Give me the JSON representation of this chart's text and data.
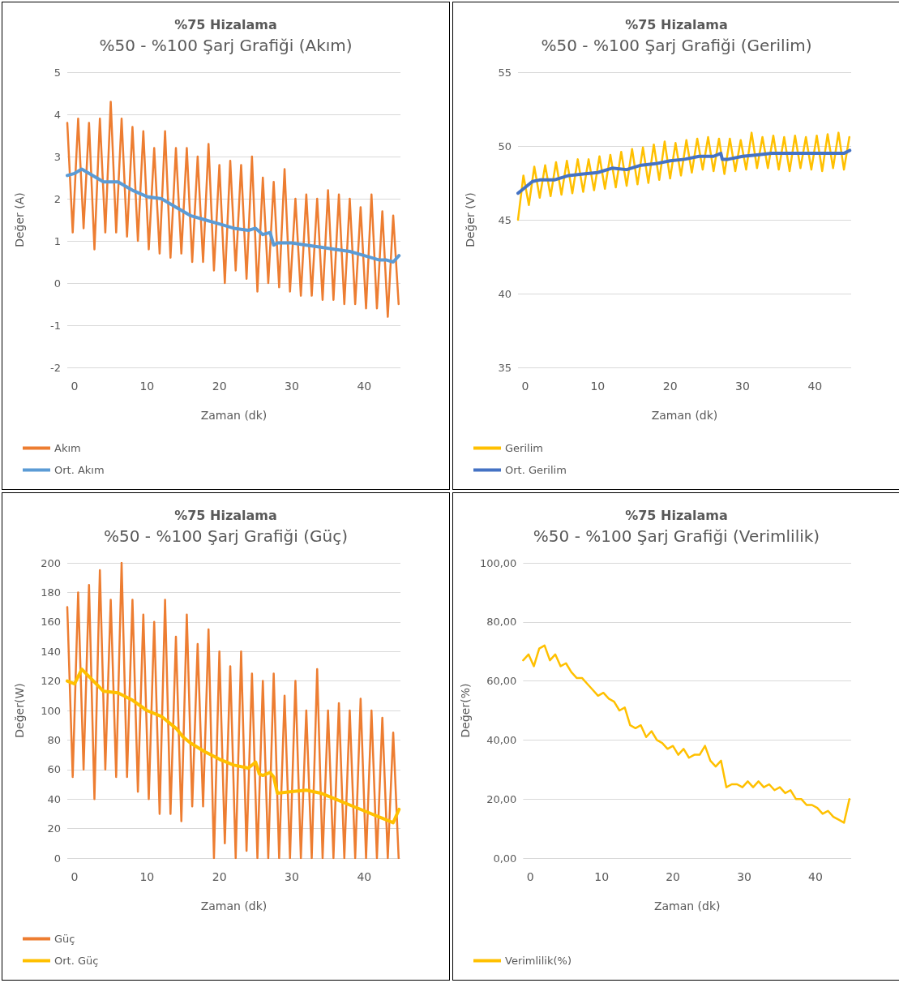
{
  "chart_data": [
    {
      "type": "line",
      "title": "%75 Hizalama",
      "subtitle": "%50 - %100 Şarj Grafiği (Akım)",
      "xlabel": "Zaman (dk)",
      "ylabel": "Değer (A)",
      "xlim": [
        -1,
        45
      ],
      "xticks": [
        0,
        10,
        20,
        30,
        40
      ],
      "ylim": [
        -2,
        5
      ],
      "yticks": [
        -2,
        -1,
        0,
        1,
        2,
        3,
        4,
        5
      ],
      "grid": "y",
      "legend": "bottom left",
      "marker": "none",
      "x": [
        -1,
        -0.25,
        0.5,
        1.25,
        2,
        2.75,
        3.5,
        4.25,
        5,
        5.75,
        6.5,
        7.25,
        8,
        8.75,
        9.5,
        10.25,
        11,
        11.75,
        12.5,
        13.25,
        14,
        14.75,
        15.5,
        16.25,
        17,
        17.75,
        18.5,
        19.25,
        20,
        20.75,
        21.5,
        22.25,
        23,
        23.75,
        24.5,
        25.25,
        26,
        26.75,
        27.5,
        28.25,
        29,
        29.75,
        30.5,
        31.25,
        32,
        32.75,
        33.5,
        34.25,
        35,
        35.75,
        36.5,
        37.25,
        38,
        38.75,
        39.5,
        40.25,
        41,
        41.75,
        42.5,
        43.25,
        44,
        44.75
      ],
      "series": [
        {
          "name": "Akım",
          "color": "#ed7d31",
          "values": [
            3.8,
            1.2,
            3.9,
            1.3,
            3.8,
            0.8,
            3.9,
            1.2,
            4.3,
            1.2,
            3.9,
            1.1,
            3.7,
            1.0,
            3.6,
            0.8,
            3.2,
            0.7,
            3.6,
            0.6,
            3.2,
            0.7,
            3.2,
            0.5,
            3.0,
            0.5,
            3.3,
            0.3,
            2.8,
            0.0,
            2.9,
            0.3,
            2.8,
            0.1,
            3.0,
            -0.2,
            2.5,
            0.0,
            2.4,
            -0.1,
            2.7,
            -0.2,
            2.0,
            -0.3,
            2.1,
            -0.3,
            2.0,
            -0.4,
            2.2,
            -0.4,
            2.1,
            -0.5,
            2.0,
            -0.5,
            1.8,
            -0.6,
            2.1,
            -0.6,
            1.7,
            -0.8,
            1.6,
            -0.5
          ]
        },
        {
          "name": "Ort. Akım",
          "color": "#5b9bd5",
          "x": [
            -1,
            0,
            1,
            2,
            4,
            6,
            8,
            10,
            12,
            14,
            16,
            18,
            20,
            22,
            24,
            25,
            26,
            27,
            27.5,
            28,
            30,
            32,
            34,
            36,
            38,
            40,
            42,
            43,
            44,
            44.8
          ],
          "values": [
            2.55,
            2.6,
            2.7,
            2.6,
            2.4,
            2.4,
            2.2,
            2.05,
            2.0,
            1.8,
            1.6,
            1.5,
            1.4,
            1.3,
            1.25,
            1.3,
            1.15,
            1.2,
            0.9,
            0.95,
            0.95,
            0.9,
            0.85,
            0.8,
            0.75,
            0.65,
            0.55,
            0.55,
            0.5,
            0.65
          ]
        }
      ]
    },
    {
      "type": "line",
      "title": "%75 Hizalama",
      "subtitle": "%50 - %100 Şarj Grafiği (Gerilim)",
      "xlabel": "Zaman (dk)",
      "ylabel": "Değer (V)",
      "xlim": [
        -1,
        45
      ],
      "xticks": [
        0,
        10,
        20,
        30,
        40
      ],
      "ylim": [
        35,
        55
      ],
      "yticks": [
        35,
        40,
        45,
        50,
        55
      ],
      "grid": "y",
      "legend": "bottom left",
      "marker": "none",
      "x": [
        -1,
        -0.25,
        0.5,
        1.25,
        2,
        2.75,
        3.5,
        4.25,
        5,
        5.75,
        6.5,
        7.25,
        8,
        8.75,
        9.5,
        10.25,
        11,
        11.75,
        12.5,
        13.25,
        14,
        14.75,
        15.5,
        16.25,
        17,
        17.75,
        18.5,
        19.25,
        20,
        20.75,
        21.5,
        22.25,
        23,
        23.75,
        24.5,
        25.25,
        26,
        26.75,
        27.5,
        28.25,
        29,
        29.75,
        30.5,
        31.25,
        32,
        32.75,
        33.5,
        34.25,
        35,
        35.75,
        36.5,
        37.25,
        38,
        38.75,
        39.5,
        40.25,
        41,
        41.75,
        42.5,
        43.25,
        44,
        44.75
      ],
      "series": [
        {
          "name": "Gerilim",
          "color": "#ffc000",
          "values": [
            45.0,
            48.0,
            46.0,
            48.6,
            46.5,
            48.7,
            46.6,
            48.9,
            46.7,
            49.0,
            46.8,
            49.1,
            46.9,
            49.1,
            47.0,
            49.3,
            47.1,
            49.4,
            47.2,
            49.6,
            47.3,
            49.8,
            47.4,
            49.9,
            47.5,
            50.1,
            47.7,
            50.3,
            47.8,
            50.2,
            48.0,
            50.4,
            48.2,
            50.5,
            48.4,
            50.6,
            48.3,
            50.5,
            48.1,
            50.5,
            48.3,
            50.4,
            48.4,
            50.9,
            48.5,
            50.6,
            48.5,
            50.7,
            48.4,
            50.6,
            48.3,
            50.7,
            48.5,
            50.6,
            48.4,
            50.7,
            48.3,
            50.8,
            48.5,
            50.9,
            48.4,
            50.6
          ]
        },
        {
          "name": "Ort. Gerilim",
          "color": "#4472c4",
          "x": [
            -1,
            0,
            1,
            2,
            4,
            6,
            8,
            10,
            12,
            14,
            16,
            18,
            20,
            22,
            24,
            26,
            27,
            27.2,
            28,
            30,
            32,
            34,
            36,
            38,
            40,
            42,
            44,
            44.8
          ],
          "values": [
            46.8,
            47.2,
            47.6,
            47.7,
            47.7,
            48.0,
            48.1,
            48.2,
            48.5,
            48.4,
            48.7,
            48.8,
            49.0,
            49.1,
            49.3,
            49.3,
            49.5,
            49.1,
            49.1,
            49.3,
            49.4,
            49.5,
            49.5,
            49.5,
            49.5,
            49.5,
            49.5,
            49.7
          ]
        }
      ]
    },
    {
      "type": "line",
      "title": "%75 Hizalama",
      "subtitle": "%50 - %100 Şarj Grafiği (Güç)",
      "xlabel": "Zaman (dk)",
      "ylabel": "Değer(W)",
      "xlim": [
        -1,
        45
      ],
      "xticks": [
        0,
        10,
        20,
        30,
        40
      ],
      "ylim": [
        0,
        200
      ],
      "yticks": [
        0,
        20,
        40,
        60,
        80,
        100,
        120,
        140,
        160,
        180,
        200
      ],
      "grid": "y",
      "legend": "bottom left",
      "marker": "none",
      "x": [
        -1,
        -0.25,
        0.5,
        1.25,
        2,
        2.75,
        3.5,
        4.25,
        5,
        5.75,
        6.5,
        7.25,
        8,
        8.75,
        9.5,
        10.25,
        11,
        11.75,
        12.5,
        13.25,
        14,
        14.75,
        15.5,
        16.25,
        17,
        17.75,
        18.5,
        19.25,
        20,
        20.75,
        21.5,
        22.25,
        23,
        23.75,
        24.5,
        25.25,
        26,
        26.75,
        27.5,
        28.25,
        29,
        29.75,
        30.5,
        31.25,
        32,
        32.75,
        33.5,
        34.25,
        35,
        35.75,
        36.5,
        37.25,
        38,
        38.75,
        39.5,
        40.25,
        41,
        41.75,
        42.5,
        43.25,
        44,
        44.75
      ],
      "series": [
        {
          "name": "Güç",
          "color": "#ed7d31",
          "values": [
            170,
            55,
            180,
            60,
            185,
            40,
            195,
            60,
            175,
            55,
            200,
            55,
            175,
            45,
            165,
            40,
            160,
            30,
            175,
            30,
            150,
            25,
            165,
            35,
            145,
            35,
            155,
            0,
            140,
            10,
            130,
            0,
            140,
            5,
            125,
            0,
            120,
            0,
            125,
            0,
            110,
            0,
            120,
            0,
            100,
            0,
            128,
            0,
            100,
            0,
            105,
            0,
            100,
            0,
            108,
            0,
            100,
            0,
            95,
            0,
            85,
            0
          ]
        },
        {
          "name": "Ort. Güç",
          "color": "#ffc000",
          "x": [
            -1,
            0,
            1,
            2,
            4,
            6,
            8,
            10,
            12,
            14,
            15,
            16,
            18,
            20,
            22,
            24,
            25,
            25.5,
            26,
            27,
            27.5,
            28,
            30,
            32,
            34,
            36,
            38,
            40,
            42,
            43,
            44,
            44.8
          ],
          "values": [
            120,
            118,
            128,
            123,
            113,
            112,
            107,
            100,
            96,
            88,
            82,
            78,
            72,
            67,
            63,
            61,
            65,
            57,
            56,
            58,
            55,
            44,
            45,
            46,
            44,
            40,
            36,
            32,
            28,
            26,
            24,
            33
          ]
        }
      ]
    },
    {
      "type": "line",
      "title": "%75 Hizalama",
      "subtitle": "%50 - %100 Şarj Grafiği (Verimlilik)",
      "xlabel": "Zaman (dk)",
      "ylabel": "Değer(%)",
      "xlim": [
        -1,
        45
      ],
      "xticks": [
        0,
        10,
        20,
        30,
        40
      ],
      "ylim": [
        0,
        100
      ],
      "yticks": [
        {
          "value": 0,
          "label": "0,00"
        },
        {
          "value": 20,
          "label": "20,00"
        },
        {
          "value": 40,
          "label": "40,00"
        },
        {
          "value": 60,
          "label": "60,00"
        },
        {
          "value": 80,
          "label": "80,00"
        },
        {
          "value": 100,
          "label": "100,00"
        }
      ],
      "grid": "y",
      "legend": "bottom left",
      "marker": "none",
      "x": [
        -1,
        -0.25,
        0.5,
        1.25,
        2,
        2.75,
        3.5,
        4.25,
        5,
        5.75,
        6.5,
        7.25,
        8,
        8.75,
        9.5,
        10.25,
        11,
        11.75,
        12.5,
        13.25,
        14,
        14.75,
        15.5,
        16.25,
        17,
        17.75,
        18.5,
        19.25,
        20,
        20.75,
        21.5,
        22.25,
        23,
        23.75,
        24.5,
        25.25,
        26,
        26.75,
        27.5,
        28.25,
        29,
        29.75,
        30.5,
        31.25,
        32,
        32.75,
        33.5,
        34.25,
        35,
        35.75,
        36.5,
        37.25,
        38,
        38.75,
        39.5,
        40.25,
        41,
        41.75,
        42.5,
        43.25,
        44,
        44.75
      ],
      "series": [
        {
          "name": "Verimlilik(%)",
          "color": "#ffc000",
          "values": [
            67,
            69,
            65,
            71,
            72,
            67,
            69,
            65,
            66,
            63,
            61,
            61,
            59,
            57,
            55,
            56,
            54,
            53,
            50,
            51,
            45,
            44,
            45,
            41,
            43,
            40,
            39,
            37,
            38,
            35,
            37,
            34,
            35,
            35,
            38,
            33,
            31,
            33,
            24,
            25,
            25,
            24,
            26,
            24,
            26,
            24,
            25,
            23,
            24,
            22,
            23,
            20,
            20,
            18,
            18,
            17,
            15,
            16,
            14,
            13,
            12,
            20
          ]
        }
      ]
    }
  ]
}
